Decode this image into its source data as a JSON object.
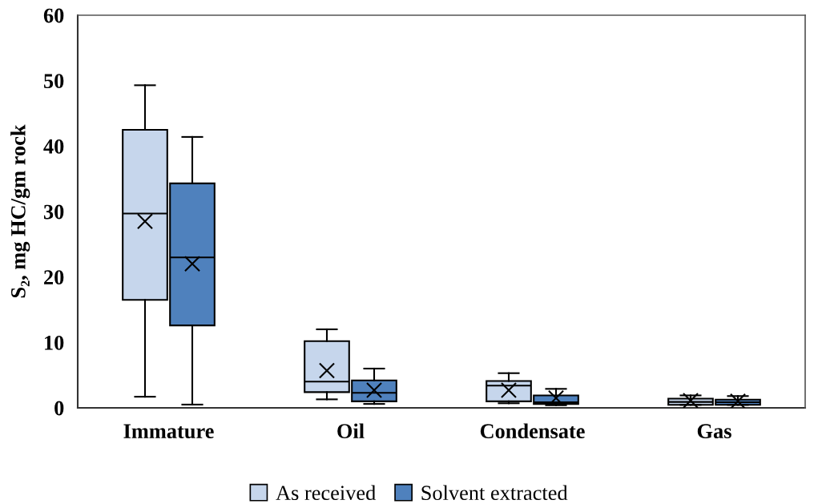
{
  "chart_data": {
    "type": "box",
    "categories": [
      "Immature",
      "Oil",
      "Condensate",
      "Gas"
    ],
    "ylabel": "S₂, mg HC/gm rock",
    "ylim": [
      0,
      60
    ],
    "yticks": [
      0,
      10,
      20,
      30,
      40,
      50,
      60
    ],
    "grid": false,
    "legend": "bottom",
    "marker": "cross",
    "series": [
      {
        "name": "As received",
        "color": "#c6d6ec",
        "boxes": [
          {
            "low": 1.7,
            "q1": 16.5,
            "median": 29.7,
            "q3": 42.5,
            "high": 49.3,
            "mean": 28.5
          },
          {
            "low": 1.3,
            "q1": 2.4,
            "median": 4.0,
            "q3": 10.2,
            "high": 12.0,
            "mean": 5.7
          },
          {
            "low": 0.7,
            "q1": 1.0,
            "median": 3.4,
            "q3": 4.1,
            "high": 5.3,
            "mean": 2.7
          },
          {
            "low": 0.45,
            "q1": 0.45,
            "median": 0.9,
            "q3": 1.4,
            "high": 1.9,
            "mean": 1.1
          }
        ]
      },
      {
        "name": "Solvent extracted",
        "color": "#4f81bd",
        "boxes": [
          {
            "low": 0.5,
            "q1": 12.6,
            "median": 23.0,
            "q3": 34.3,
            "high": 41.4,
            "mean": 22.0
          },
          {
            "low": 0.6,
            "q1": 1.0,
            "median": 2.3,
            "q3": 4.2,
            "high": 6.0,
            "mean": 2.7
          },
          {
            "low": 0.4,
            "q1": 0.6,
            "median": 0.85,
            "q3": 1.9,
            "high": 2.9,
            "mean": 1.5
          },
          {
            "low": 0.45,
            "q1": 0.45,
            "median": 0.85,
            "q3": 1.25,
            "high": 1.8,
            "mean": 1.0
          }
        ]
      }
    ]
  }
}
